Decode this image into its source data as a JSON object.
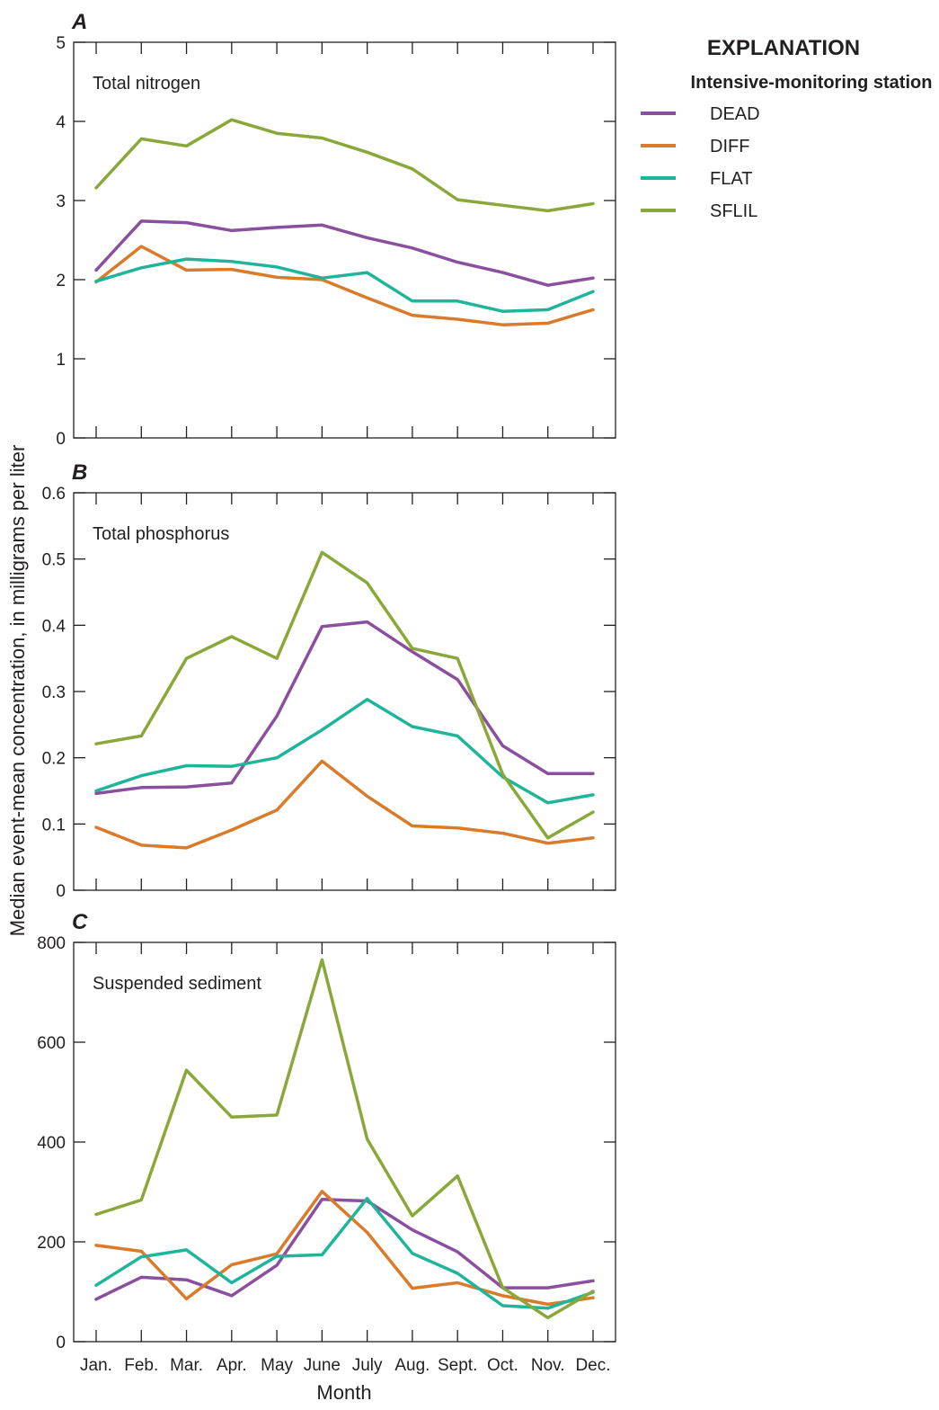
{
  "ylabel": "Median event-mean concentration, in milligrams per liter",
  "xlabel": "Month",
  "legend": {
    "title": "EXPLANATION",
    "subtitle": "Intensive-monitoring station",
    "placement": "top-right, outside plots"
  },
  "colors": {
    "DEAD": "#8a4f9e",
    "DIFF": "#d97b2b",
    "FLAT": "#1fb59a",
    "SFLIL": "#8aa83a",
    "axis": "#231f20"
  },
  "chart_data": [
    {
      "type": "line",
      "letter": "A",
      "title": "Total nitrogen",
      "x": [
        "Jan.",
        "Feb.",
        "Mar.",
        "Apr.",
        "May",
        "June",
        "July",
        "Aug.",
        "Sept.",
        "Oct.",
        "Nov.",
        "Dec."
      ],
      "ylim": [
        0,
        5
      ],
      "yticks": [
        0,
        1,
        2,
        3,
        4,
        5
      ],
      "grid": false,
      "series": [
        {
          "name": "DEAD",
          "values": [
            2.12,
            2.74,
            2.72,
            2.62,
            2.66,
            2.69,
            2.53,
            2.4,
            2.22,
            2.09,
            1.93,
            2.02
          ]
        },
        {
          "name": "DIFF",
          "values": [
            1.97,
            2.42,
            2.12,
            2.13,
            2.03,
            2.0,
            1.77,
            1.55,
            1.5,
            1.43,
            1.45,
            1.62
          ]
        },
        {
          "name": "FLAT",
          "values": [
            1.98,
            2.15,
            2.26,
            2.23,
            2.16,
            2.02,
            2.09,
            1.73,
            1.73,
            1.6,
            1.62,
            1.85
          ]
        },
        {
          "name": "SFLIL",
          "values": [
            3.16,
            3.78,
            3.69,
            4.02,
            3.85,
            3.79,
            3.61,
            3.4,
            3.01,
            2.94,
            2.87,
            2.96
          ]
        }
      ]
    },
    {
      "type": "line",
      "letter": "B",
      "title": "Total phosphorus",
      "x": [
        "Jan.",
        "Feb.",
        "Mar.",
        "Apr.",
        "May",
        "June",
        "July",
        "Aug.",
        "Sept.",
        "Oct.",
        "Nov.",
        "Dec."
      ],
      "ylim": [
        0,
        0.6
      ],
      "yticks": [
        0,
        0.1,
        0.2,
        0.3,
        0.4,
        0.5,
        0.6
      ],
      "grid": false,
      "series": [
        {
          "name": "DEAD",
          "values": [
            0.146,
            0.155,
            0.156,
            0.162,
            0.263,
            0.398,
            0.405,
            0.36,
            0.318,
            0.218,
            0.176,
            0.176
          ]
        },
        {
          "name": "DIFF",
          "values": [
            0.095,
            0.068,
            0.064,
            0.091,
            0.121,
            0.195,
            0.142,
            0.097,
            0.094,
            0.086,
            0.071,
            0.079
          ]
        },
        {
          "name": "FLAT",
          "values": [
            0.15,
            0.173,
            0.188,
            0.187,
            0.2,
            0.242,
            0.288,
            0.247,
            0.233,
            0.171,
            0.132,
            0.144
          ]
        },
        {
          "name": "SFLIL",
          "values": [
            0.221,
            0.233,
            0.35,
            0.383,
            0.35,
            0.51,
            0.464,
            0.365,
            0.35,
            0.175,
            0.079,
            0.118
          ]
        }
      ]
    },
    {
      "type": "line",
      "letter": "C",
      "title": "Suspended sediment",
      "x": [
        "Jan.",
        "Feb.",
        "Mar.",
        "Apr.",
        "May",
        "June",
        "July",
        "Aug.",
        "Sept.",
        "Oct.",
        "Nov.",
        "Dec."
      ],
      "ylim": [
        0,
        800
      ],
      "yticks": [
        0,
        200,
        400,
        600,
        800
      ],
      "grid": false,
      "series": [
        {
          "name": "DEAD",
          "values": [
            85,
            129,
            124,
            92,
            153,
            285,
            282,
            224,
            180,
            108,
            108,
            122
          ]
        },
        {
          "name": "DIFF",
          "values": [
            193,
            181,
            86,
            154,
            176,
            301,
            219,
            107,
            118,
            92,
            75,
            88
          ]
        },
        {
          "name": "FLAT",
          "values": [
            113,
            170,
            184,
            118,
            171,
            174,
            287,
            177,
            137,
            72,
            67,
            99
          ]
        },
        {
          "name": "SFLIL",
          "values": [
            255,
            284,
            544,
            450,
            454,
            765,
            406,
            252,
            332,
            108,
            48,
            101
          ]
        }
      ]
    }
  ]
}
